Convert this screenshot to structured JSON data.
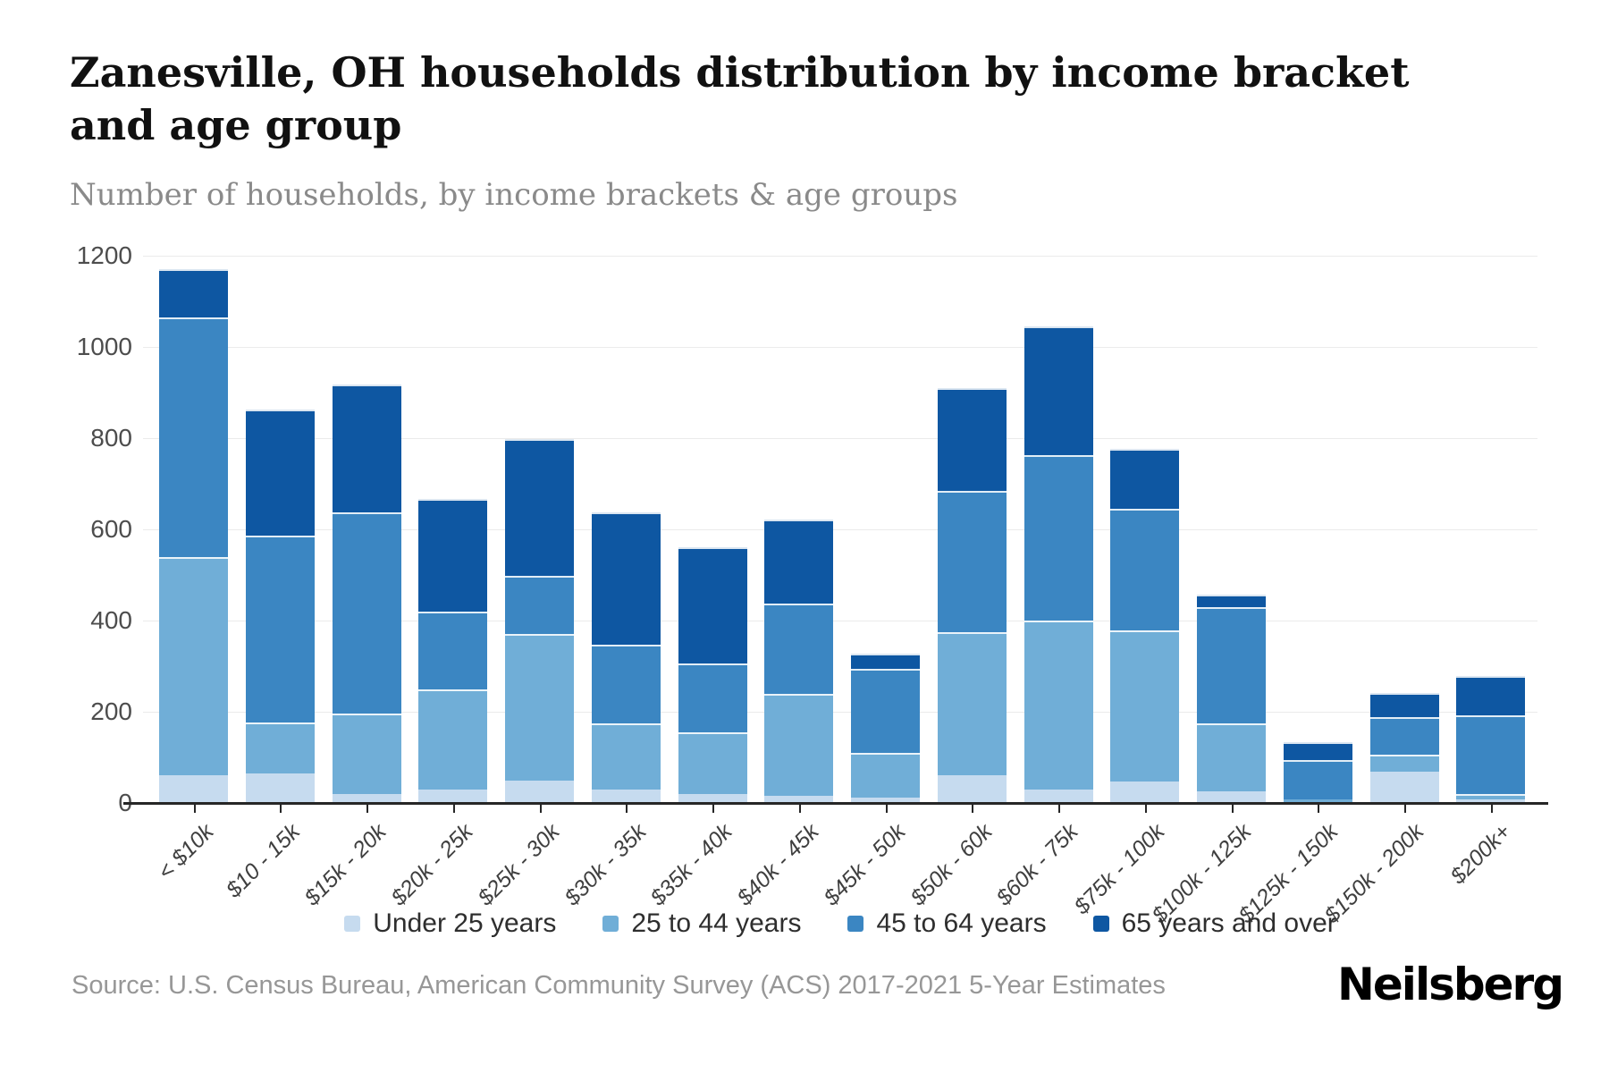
{
  "header": {
    "title": "Zanesville, OH households distribution by income bracket and age group",
    "subtitle": "Number of households, by income brackets & age groups"
  },
  "chart_data": {
    "type": "bar",
    "stacked": true,
    "title": "Zanesville, OH households distribution by income bracket and age group",
    "subtitle": "Number of households, by income brackets & age groups",
    "xlabel": "",
    "ylabel": "Number of households",
    "ylim": [
      0,
      1200
    ],
    "yticks": [
      0,
      200,
      400,
      600,
      800,
      1000,
      1200
    ],
    "grid": true,
    "legend_position": "bottom",
    "categories": [
      "< $10k",
      "$10 - 15k",
      "$15k - 20k",
      "$20k - 25k",
      "$25k - 30k",
      "$30k - 35k",
      "$35k - 40k",
      "$40k - 45k",
      "$45k - 50k",
      "$50k - 60k",
      "$60k - 75k",
      "$75k - 100k",
      "$100k - 125k",
      "$125k - 150k",
      "$150k - 200k",
      "$200k+"
    ],
    "series": [
      {
        "name": "Under 25 years",
        "color": "#c6dbef",
        "values": [
          60,
          65,
          20,
          30,
          50,
          30,
          20,
          15,
          12,
          60,
          30,
          48,
          25,
          0,
          68,
          8
        ]
      },
      {
        "name": "25 to 44 years",
        "color": "#70aed7",
        "values": [
          480,
          112,
          177,
          219,
          320,
          145,
          135,
          225,
          98,
          315,
          370,
          330,
          150,
          8,
          37,
          12
        ]
      },
      {
        "name": "45 to 64 years",
        "color": "#3b86c2",
        "values": [
          525,
          410,
          440,
          171,
          128,
          173,
          150,
          197,
          185,
          310,
          362,
          268,
          255,
          87,
          84,
          172
        ]
      },
      {
        "name": "65 years and over",
        "color": "#0e57a2",
        "values": [
          105,
          275,
          280,
          247,
          300,
          290,
          255,
          185,
          32,
          225,
          283,
          130,
          26,
          38,
          52,
          87
        ]
      }
    ],
    "totals": [
      1170,
      862,
      917,
      667,
      798,
      638,
      560,
      622,
      327,
      910,
      1045,
      776,
      456,
      133,
      241,
      279
    ]
  },
  "footer": {
    "source": "Source: U.S. Census Bureau, American Community Survey (ACS) 2017-2021 5-Year Estimates",
    "brand": "Neilsberg"
  }
}
